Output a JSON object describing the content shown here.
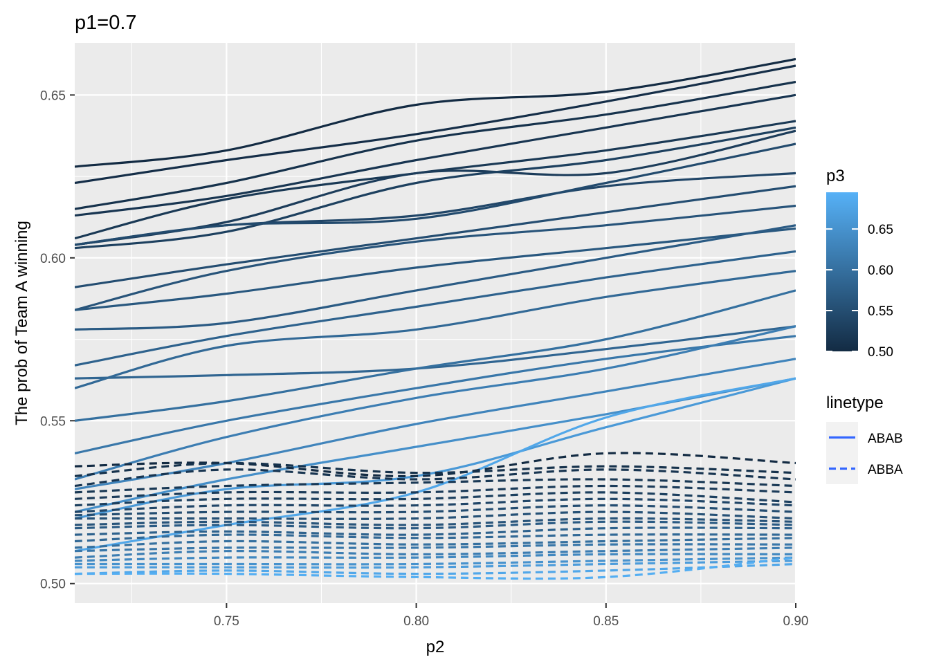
{
  "chart_data": {
    "type": "line",
    "title": "p1=0.7",
    "xlabel": "p2",
    "ylabel": "The prob of Team A winning",
    "xlim": [
      0.71,
      0.9
    ],
    "ylim": [
      0.494,
      0.666
    ],
    "x_ticks": [
      0.75,
      0.8,
      0.85,
      0.9
    ],
    "x_tick_labels": [
      "0.75",
      "0.80",
      "0.85",
      "0.90"
    ],
    "y_ticks": [
      0.5,
      0.55,
      0.6,
      0.65
    ],
    "y_tick_labels": [
      "0.50",
      "0.55",
      "0.60",
      "0.65"
    ],
    "grid": true,
    "legend_position": "right",
    "colorbar": {
      "title": "p3",
      "range": [
        0.5,
        0.695
      ],
      "ticks": [
        0.5,
        0.55,
        0.6,
        0.65
      ],
      "tick_labels": [
        "0.50",
        "0.55",
        "0.60",
        "0.65"
      ],
      "low_color": "#132B43",
      "high_color": "#56B1F7"
    },
    "linetype_legend": {
      "title": "linetype",
      "entries": [
        {
          "label": "ABAB",
          "dash": "solid"
        },
        {
          "label": "ABBA",
          "dash": "dashed"
        }
      ],
      "key_color": "#3366FF"
    },
    "x": [
      0.71,
      0.75,
      0.8,
      0.85,
      0.9
    ],
    "series": [
      {
        "linetype": "ABAB",
        "p3": 0.5,
        "values": [
          0.628,
          0.633,
          0.647,
          0.651,
          0.661
        ]
      },
      {
        "linetype": "ABAB",
        "p3": 0.505,
        "values": [
          0.623,
          0.63,
          0.638,
          0.648,
          0.659
        ]
      },
      {
        "linetype": "ABAB",
        "p3": 0.51,
        "values": [
          0.615,
          0.623,
          0.636,
          0.644,
          0.654
        ]
      },
      {
        "linetype": "ABAB",
        "p3": 0.515,
        "values": [
          0.613,
          0.619,
          0.63,
          0.64,
          0.65
        ]
      },
      {
        "linetype": "ABAB",
        "p3": 0.52,
        "values": [
          0.606,
          0.618,
          0.626,
          0.633,
          0.642
        ]
      },
      {
        "linetype": "ABAB",
        "p3": 0.525,
        "values": [
          0.604,
          0.611,
          0.626,
          0.626,
          0.639
        ]
      },
      {
        "linetype": "ABAB",
        "p3": 0.53,
        "values": [
          0.603,
          0.608,
          0.623,
          0.63,
          0.64
        ]
      },
      {
        "linetype": "ABAB",
        "p3": 0.54,
        "values": [
          0.604,
          0.61,
          0.613,
          0.622,
          0.626
        ]
      },
      {
        "linetype": "ABAB",
        "p3": 0.545,
        "values": [
          0.604,
          0.61,
          0.612,
          0.623,
          0.635
        ]
      },
      {
        "linetype": "ABAB",
        "p3": 0.55,
        "values": [
          0.591,
          0.598,
          0.606,
          0.614,
          0.622
        ]
      },
      {
        "linetype": "ABAB",
        "p3": 0.56,
        "values": [
          0.584,
          0.596,
          0.605,
          0.61,
          0.616
        ]
      },
      {
        "linetype": "ABAB",
        "p3": 0.565,
        "values": [
          0.584,
          0.589,
          0.597,
          0.603,
          0.609
        ]
      },
      {
        "linetype": "ABAB",
        "p3": 0.57,
        "values": [
          0.578,
          0.58,
          0.59,
          0.6,
          0.61
        ]
      },
      {
        "linetype": "ABAB",
        "p3": 0.58,
        "values": [
          0.567,
          0.576,
          0.585,
          0.594,
          0.602
        ]
      },
      {
        "linetype": "ABAB",
        "p3": 0.585,
        "values": [
          0.563,
          0.564,
          0.566,
          0.572,
          0.579
        ]
      },
      {
        "linetype": "ABAB",
        "p3": 0.59,
        "values": [
          0.56,
          0.573,
          0.578,
          0.588,
          0.596
        ]
      },
      {
        "linetype": "ABAB",
        "p3": 0.6,
        "values": [
          0.55,
          0.556,
          0.566,
          0.575,
          0.59
        ]
      },
      {
        "linetype": "ABAB",
        "p3": 0.61,
        "values": [
          0.54,
          0.55,
          0.56,
          0.569,
          0.576
        ]
      },
      {
        "linetype": "ABAB",
        "p3": 0.62,
        "values": [
          0.532,
          0.545,
          0.557,
          0.566,
          0.579
        ]
      },
      {
        "linetype": "ABAB",
        "p3": 0.63,
        "values": [
          0.529,
          0.537,
          0.549,
          0.559,
          0.569
        ]
      },
      {
        "linetype": "ABAB",
        "p3": 0.645,
        "values": [
          0.522,
          0.532,
          0.542,
          0.552,
          0.563
        ]
      },
      {
        "linetype": "ABAB",
        "p3": 0.66,
        "values": [
          0.52,
          0.529,
          0.533,
          0.548,
          0.563
        ]
      },
      {
        "linetype": "ABAB",
        "p3": 0.68,
        "values": [
          0.51,
          0.518,
          0.528,
          0.551,
          0.563
        ]
      },
      {
        "linetype": "ABBA",
        "p3": 0.5,
        "values": [
          0.536,
          0.537,
          0.533,
          0.54,
          0.537
        ]
      },
      {
        "linetype": "ABBA",
        "p3": 0.51,
        "values": [
          0.533,
          0.537,
          0.534,
          0.536,
          0.534
        ]
      },
      {
        "linetype": "ABBA",
        "p3": 0.515,
        "values": [
          0.53,
          0.535,
          0.532,
          0.535,
          0.532
        ]
      },
      {
        "linetype": "ABBA",
        "p3": 0.52,
        "values": [
          0.528,
          0.53,
          0.531,
          0.532,
          0.53
        ]
      },
      {
        "linetype": "ABBA",
        "p3": 0.525,
        "values": [
          0.526,
          0.528,
          0.528,
          0.53,
          0.528
        ]
      },
      {
        "linetype": "ABBA",
        "p3": 0.53,
        "values": [
          0.524,
          0.526,
          0.526,
          0.528,
          0.525
        ]
      },
      {
        "linetype": "ABBA",
        "p3": 0.54,
        "values": [
          0.522,
          0.524,
          0.524,
          0.526,
          0.524
        ]
      },
      {
        "linetype": "ABBA",
        "p3": 0.55,
        "values": [
          0.521,
          0.522,
          0.522,
          0.524,
          0.522
        ]
      },
      {
        "linetype": "ABBA",
        "p3": 0.555,
        "values": [
          0.52,
          0.52,
          0.52,
          0.522,
          0.52
        ]
      },
      {
        "linetype": "ABBA",
        "p3": 0.56,
        "values": [
          0.518,
          0.519,
          0.518,
          0.52,
          0.519
        ]
      },
      {
        "linetype": "ABBA",
        "p3": 0.57,
        "values": [
          0.517,
          0.518,
          0.517,
          0.519,
          0.518
        ]
      },
      {
        "linetype": "ABBA",
        "p3": 0.58,
        "values": [
          0.515,
          0.516,
          0.515,
          0.517,
          0.517
        ]
      },
      {
        "linetype": "ABBA",
        "p3": 0.59,
        "values": [
          0.513,
          0.515,
          0.514,
          0.515,
          0.515
        ]
      },
      {
        "linetype": "ABBA",
        "p3": 0.6,
        "values": [
          0.511,
          0.513,
          0.512,
          0.513,
          0.514
        ]
      },
      {
        "linetype": "ABBA",
        "p3": 0.61,
        "values": [
          0.51,
          0.511,
          0.511,
          0.512,
          0.512
        ]
      },
      {
        "linetype": "ABBA",
        "p3": 0.62,
        "values": [
          0.508,
          0.51,
          0.509,
          0.51,
          0.511
        ]
      },
      {
        "linetype": "ABBA",
        "p3": 0.635,
        "values": [
          0.507,
          0.508,
          0.508,
          0.509,
          0.509
        ]
      },
      {
        "linetype": "ABBA",
        "p3": 0.65,
        "values": [
          0.506,
          0.506,
          0.506,
          0.507,
          0.508
        ]
      },
      {
        "linetype": "ABBA",
        "p3": 0.665,
        "values": [
          0.505,
          0.505,
          0.505,
          0.506,
          0.507
        ]
      },
      {
        "linetype": "ABBA",
        "p3": 0.68,
        "values": [
          0.503,
          0.504,
          0.503,
          0.504,
          0.506
        ]
      },
      {
        "linetype": "ABBA",
        "p3": 0.69,
        "values": [
          0.503,
          0.503,
          0.502,
          0.502,
          0.508
        ]
      }
    ]
  }
}
